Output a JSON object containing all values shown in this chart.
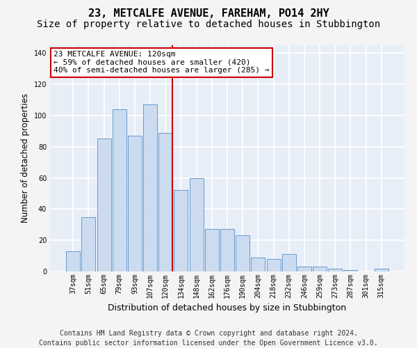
{
  "title": "23, METCALFE AVENUE, FAREHAM, PO14 2HY",
  "subtitle": "Size of property relative to detached houses in Stubbington",
  "xlabel": "Distribution of detached houses by size in Stubbington",
  "ylabel": "Number of detached properties",
  "categories": [
    "37sqm",
    "51sqm",
    "65sqm",
    "79sqm",
    "93sqm",
    "107sqm",
    "120sqm",
    "134sqm",
    "148sqm",
    "162sqm",
    "176sqm",
    "190sqm",
    "204sqm",
    "218sqm",
    "232sqm",
    "246sqm",
    "259sqm",
    "273sqm",
    "287sqm",
    "301sqm",
    "315sqm"
  ],
  "values": [
    13,
    35,
    85,
    104,
    87,
    107,
    89,
    52,
    60,
    27,
    27,
    23,
    9,
    8,
    11,
    3,
    3,
    2,
    1,
    0,
    2
  ],
  "bar_color": "#ccdcf0",
  "bar_edge_color": "#6699cc",
  "highlight_index": 6,
  "highlight_line_color": "#cc0000",
  "ylim": [
    0,
    145
  ],
  "yticks": [
    0,
    20,
    40,
    60,
    80,
    100,
    120,
    140
  ],
  "annotation_title": "23 METCALFE AVENUE: 120sqm",
  "annotation_line1": "← 59% of detached houses are smaller (420)",
  "annotation_line2": "40% of semi-detached houses are larger (285) →",
  "annotation_box_color": "#ffffff",
  "annotation_box_edge": "#cc0000",
  "footer_line1": "Contains HM Land Registry data © Crown copyright and database right 2024.",
  "footer_line2": "Contains public sector information licensed under the Open Government Licence v3.0.",
  "bg_color": "#e8eef8",
  "grid_color": "#ffffff",
  "fig_bg_color": "#f4f4f4",
  "title_fontsize": 11,
  "subtitle_fontsize": 10,
  "ylabel_fontsize": 8.5,
  "xlabel_fontsize": 9,
  "tick_fontsize": 7,
  "footer_fontsize": 7,
  "annot_fontsize": 8
}
